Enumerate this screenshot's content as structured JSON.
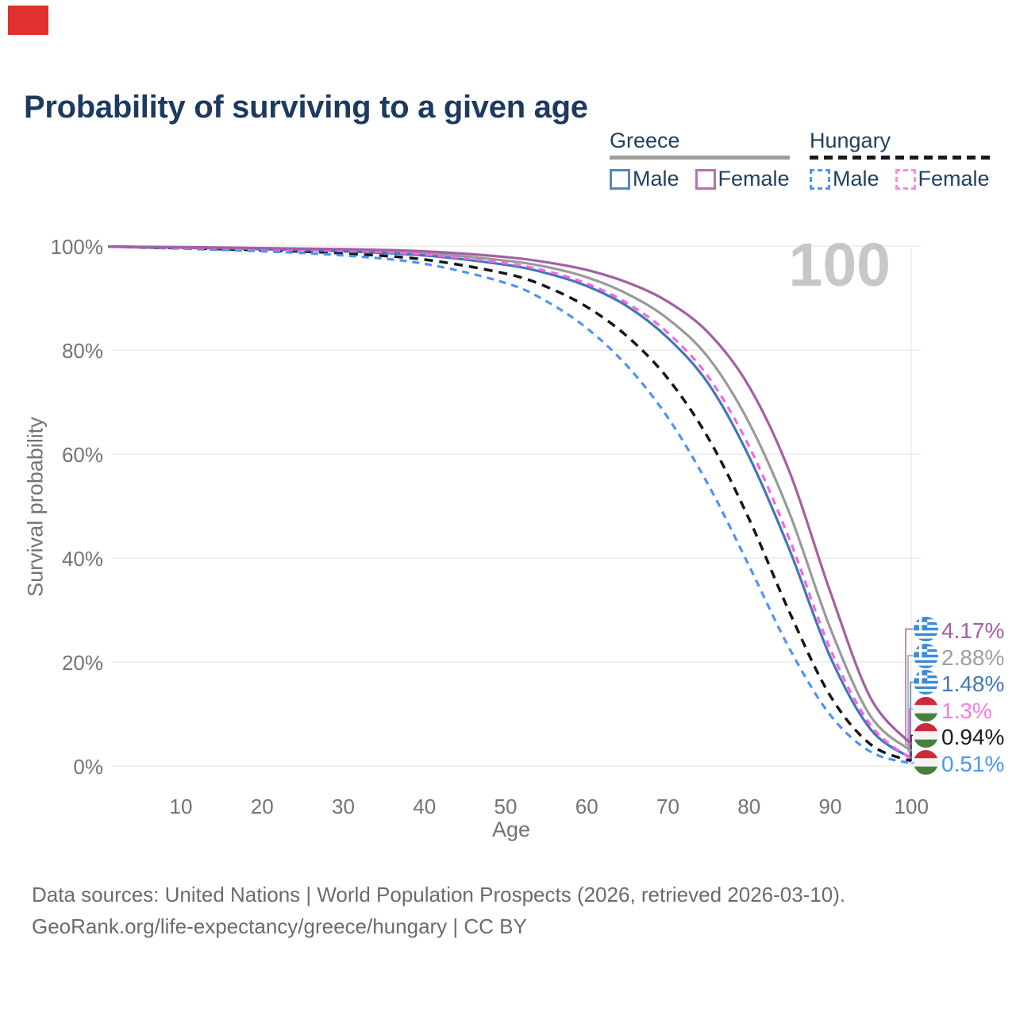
{
  "annotation_marker": {
    "color": "#e0312e"
  },
  "title": "Probability of surviving to a given age",
  "legend": {
    "groups": [
      {
        "label": "Greece",
        "line_style": "solid",
        "line_color": "#9e9e9e",
        "items": [
          {
            "label": "Male",
            "color": "#5585c0",
            "dashed": false
          },
          {
            "label": "Female",
            "color": "#b273af",
            "dashed": false
          }
        ]
      },
      {
        "label": "Hungary",
        "line_style": "dashed",
        "line_color": "#1a1a1a",
        "items": [
          {
            "label": "Male",
            "color": "#4b94fa",
            "dashed": true
          },
          {
            "label": "Female",
            "color": "#fc8ae2",
            "dashed": true
          }
        ]
      }
    ]
  },
  "chart_data": {
    "type": "line",
    "title": "Probability of surviving to a given age",
    "xlabel": "Age",
    "ylabel": "Survival probability",
    "watermark_age": "100",
    "x_ticks": [
      10,
      20,
      30,
      40,
      50,
      60,
      70,
      80,
      90,
      100
    ],
    "y_tick_labels": [
      "0%",
      "20%",
      "40%",
      "60%",
      "80%",
      "100%"
    ],
    "y_tick_values": [
      0,
      20,
      40,
      60,
      80,
      100
    ],
    "xlim": [
      1,
      100
    ],
    "ylim": [
      0,
      100
    ],
    "grid": true,
    "ages": [
      1,
      10,
      20,
      30,
      40,
      50,
      55,
      60,
      65,
      70,
      75,
      80,
      85,
      90,
      95,
      100
    ],
    "series": [
      {
        "name": "Greece Female",
        "country": "Greece",
        "sex": "Female",
        "color": "#a55fa3",
        "dashed": false,
        "end_label": "4.17%",
        "flag": "greece",
        "values": [
          99.9,
          99.8,
          99.6,
          99.4,
          99.0,
          97.9,
          96.9,
          95.4,
          93.0,
          89.3,
          83.3,
          73.0,
          56.5,
          33.5,
          13.0,
          4.17
        ]
      },
      {
        "name": "Greece Total",
        "country": "Greece",
        "sex": "Total",
        "color": "#9a9a9a",
        "dashed": false,
        "end_label": "2.88%",
        "flag": "greece",
        "values": [
          99.9,
          99.7,
          99.5,
          99.2,
          98.6,
          97.2,
          96.0,
          94.0,
          90.8,
          86.0,
          78.5,
          66.0,
          48.5,
          26.5,
          9.5,
          2.88
        ]
      },
      {
        "name": "Greece Male",
        "country": "Greece",
        "sex": "Male",
        "color": "#3f77bb",
        "dashed": false,
        "end_label": "1.48%",
        "flag": "greece",
        "values": [
          99.9,
          99.7,
          99.4,
          99.0,
          98.2,
          96.4,
          94.8,
          92.3,
          88.4,
          82.3,
          73.5,
          59.5,
          41.5,
          21.0,
          7.0,
          1.48
        ]
      },
      {
        "name": "Hungary Female",
        "country": "Hungary",
        "sex": "Female",
        "color": "#fb64dd",
        "dashed": true,
        "end_label": "1.3%",
        "flag": "hungary",
        "values": [
          99.9,
          99.7,
          99.4,
          99.1,
          98.4,
          96.7,
          95.2,
          92.8,
          89.0,
          83.3,
          74.8,
          61.5,
          43.5,
          22.5,
          7.8,
          1.3
        ]
      },
      {
        "name": "Hungary Total",
        "country": "Hungary",
        "sex": "Total",
        "color": "#161616",
        "dashed": true,
        "end_label": "0.94%",
        "flag": "hungary",
        "values": [
          99.9,
          99.6,
          99.2,
          98.6,
          97.4,
          94.7,
          92.2,
          88.3,
          82.6,
          74.5,
          63.0,
          47.5,
          29.5,
          13.5,
          4.1,
          0.94
        ]
      },
      {
        "name": "Hungary Male",
        "country": "Hungary",
        "sex": "Male",
        "color": "#4b94fa",
        "dashed": true,
        "end_label": "0.51%",
        "flag": "hungary",
        "values": [
          99.9,
          99.5,
          99.0,
          98.2,
          96.6,
          92.9,
          89.4,
          84.2,
          76.9,
          67.0,
          54.0,
          38.5,
          22.5,
          9.8,
          2.7,
          0.51
        ]
      }
    ],
    "end_label_colors": [
      "#a55fa3",
      "#9e9e9e",
      "#3f77bb",
      "#fc7ae1",
      "#1c1c1c",
      "#4b94fa"
    ],
    "gridline_color": "#e8e8e8"
  },
  "footer": {
    "line1": "Data sources: United Nations | World Population Prospects (2026, retrieved 2026-03-10).",
    "line2": "GeoRank.org/life-expectancy/greece/hungary | CC BY"
  }
}
